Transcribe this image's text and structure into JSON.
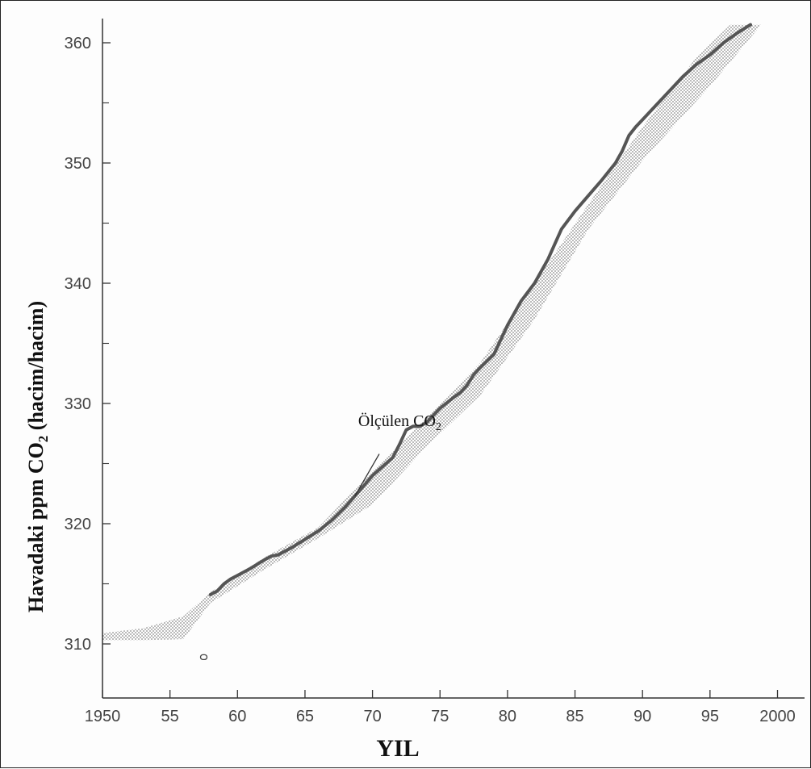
{
  "chart_data": {
    "type": "line",
    "title": "",
    "xlabel": "YIL",
    "ylabel_main": "Havadaki ppm CO",
    "ylabel_sub": "2",
    "ylabel_tail": "(hacim/hacim)",
    "xlim": [
      1950,
      2000
    ],
    "ylim": [
      305,
      361.5
    ],
    "x_ticks": [
      {
        "value": 1950,
        "label": "1950"
      },
      {
        "value": 1955,
        "label": "55"
      },
      {
        "value": 1960,
        "label": "60"
      },
      {
        "value": 1965,
        "label": "65"
      },
      {
        "value": 1970,
        "label": "70"
      },
      {
        "value": 1975,
        "label": "75"
      },
      {
        "value": 1980,
        "label": "80"
      },
      {
        "value": 1985,
        "label": "85"
      },
      {
        "value": 1990,
        "label": "90"
      },
      {
        "value": 1995,
        "label": "95"
      },
      {
        "value": 2000,
        "label": "2000"
      }
    ],
    "y_ticks": [
      {
        "value": 310,
        "label": "310"
      },
      {
        "value": 320,
        "label": "320"
      },
      {
        "value": 330,
        "label": "330"
      },
      {
        "value": 340,
        "label": "340"
      },
      {
        "value": 350,
        "label": "350"
      },
      {
        "value": 360,
        "label": "360"
      }
    ],
    "series": [
      {
        "name": "Ölçülen CO",
        "name_sub": "2",
        "color": "#555555",
        "x": [
          1958.0,
          1958.5,
          1959.0,
          1959.5,
          1960.0,
          1961.0,
          1962.0,
          1962.5,
          1963.0,
          1964.0,
          1965.0,
          1966.0,
          1967.0,
          1968.0,
          1969.0,
          1970.0,
          1971.0,
          1971.5,
          1972.0,
          1972.5,
          1973.0,
          1973.5,
          1974.0,
          1975.0,
          1976.0,
          1976.5,
          1977.0,
          1977.5,
          1978.0,
          1979.0,
          1980.0,
          1981.0,
          1982.0,
          1983.0,
          1984.0,
          1985.0,
          1986.0,
          1987.0,
          1988.0,
          1988.5,
          1989.0,
          1989.5,
          1990.0,
          1991.0,
          1992.0,
          1993.0,
          1994.0,
          1995.0,
          1996.0,
          1997.0,
          1998.0
        ],
        "y": [
          314.1,
          314.4,
          315.0,
          315.4,
          315.7,
          316.3,
          317.0,
          317.3,
          317.4,
          318.0,
          318.7,
          319.4,
          320.3,
          321.4,
          322.7,
          324.0,
          325.0,
          325.5,
          326.6,
          327.8,
          328.1,
          328.1,
          328.4,
          329.6,
          330.5,
          330.9,
          331.5,
          332.4,
          333.0,
          334.1,
          336.5,
          338.5,
          340.0,
          342.0,
          344.5,
          346.0,
          347.3,
          348.6,
          350.0,
          351.0,
          352.3,
          353.0,
          353.6,
          354.8,
          356.0,
          357.2,
          358.2,
          359.0,
          360.0,
          360.8,
          361.5
        ]
      }
    ],
    "band": {
      "fill": "#aaaaaa",
      "upper": [
        [
          1950,
          310.9
        ],
        [
          1953,
          311.3
        ],
        [
          1956,
          312.3
        ],
        [
          1958,
          314.3
        ],
        [
          1962,
          317.2
        ],
        [
          1966,
          319.7
        ],
        [
          1970,
          324.4
        ],
        [
          1974,
          328.8
        ],
        [
          1978,
          333.4
        ],
        [
          1982,
          340.0
        ],
        [
          1986,
          346.6
        ],
        [
          1990,
          353.0
        ],
        [
          1994,
          358.8
        ],
        [
          1996.5,
          361.5
        ]
      ],
      "lower": [
        [
          1998.8,
          361.5
        ],
        [
          1995,
          356.4
        ],
        [
          1990,
          350.2
        ],
        [
          1986,
          344.5
        ],
        [
          1982,
          337.0
        ],
        [
          1978,
          330.7
        ],
        [
          1974,
          326.4
        ],
        [
          1970,
          321.6
        ],
        [
          1966,
          318.8
        ],
        [
          1962,
          316.2
        ],
        [
          1958,
          313.4
        ],
        [
          1956,
          310.4
        ],
        [
          1953,
          310.3
        ],
        [
          1950,
          310.3
        ]
      ]
    },
    "annotation": {
      "text": "Ölçülen CO",
      "sub": "2",
      "x": 1972.5,
      "y": 327.3,
      "arrow_x": 1968.7,
      "arrow_y": 322.3
    },
    "marker": {
      "x": 1957.5,
      "y": 308.9
    },
    "grid": false,
    "legend": "none"
  }
}
